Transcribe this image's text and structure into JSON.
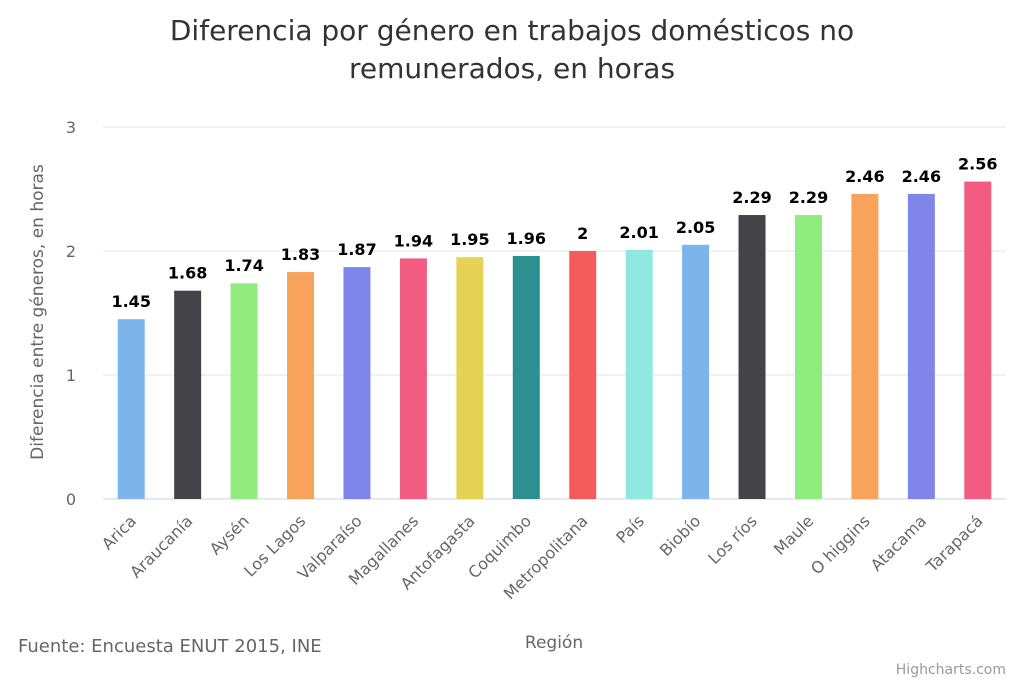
{
  "source": "Fuente: Encuesta ENUT 2015, INE",
  "credits": "Highcharts.com",
  "chart_data": {
    "type": "bar",
    "title_lines": [
      "Diferencia por género en trabajos domésticos no",
      "remunerados, en horas"
    ],
    "xlabel": "Región",
    "ylabel": "Diferencia entre géneros, en horas",
    "ylim": [
      0,
      3
    ],
    "yticks": [
      0,
      1,
      2,
      3
    ],
    "grid": true,
    "legend": "none",
    "categories": [
      "Arica",
      "Araucanía",
      "Aysén",
      "Los Lagos",
      "Valparaíso",
      "Magallanes",
      "Antofagasta",
      "Coquimbo",
      "Metropolitana",
      "País",
      "Biobío",
      "Los ríos",
      "Maule",
      "O higgins",
      "Atacama",
      "Tarapacá"
    ],
    "values": [
      1.45,
      1.68,
      1.74,
      1.83,
      1.87,
      1.94,
      1.95,
      1.96,
      2,
      2.01,
      2.05,
      2.29,
      2.29,
      2.46,
      2.46,
      2.56
    ],
    "data_labels": [
      "1.45",
      "1.68",
      "1.74",
      "1.83",
      "1.87",
      "1.94",
      "1.95",
      "1.96",
      "2",
      "2.01",
      "2.05",
      "2.29",
      "2.29",
      "2.46",
      "2.46",
      "2.56"
    ],
    "colors": [
      "#7cb5ec",
      "#434348",
      "#90ed7d",
      "#f7a35c",
      "#8085e9",
      "#f15c80",
      "#e4d354",
      "#2b908f",
      "#f45b5b",
      "#91e8e1",
      "#7cb5ec",
      "#434348",
      "#90ed7d",
      "#f7a35c",
      "#8085e9",
      "#f15c80"
    ]
  }
}
